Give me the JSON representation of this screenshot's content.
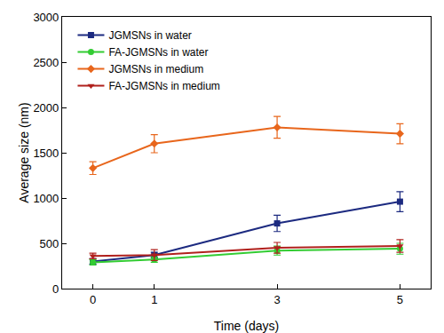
{
  "chart_data": {
    "type": "line",
    "x_label": "Time (days)",
    "y_label": "Average size (nm)",
    "x": [
      0,
      1,
      3,
      5
    ],
    "xlim": [
      -0.5,
      5.5
    ],
    "xticks": [
      0,
      1,
      3,
      5
    ],
    "ylim": [
      0,
      3000
    ],
    "yticks": [
      0,
      500,
      1000,
      1500,
      2000,
      2500,
      3000
    ],
    "grid": false,
    "legend": "upper left",
    "series": [
      {
        "name": "JGMSNs in water",
        "color": "#1c2a80",
        "marker": "square",
        "values": [
          300,
          370,
          720,
          960
        ],
        "errors": [
          30,
          30,
          90,
          110
        ]
      },
      {
        "name": "FA-JGMSNs in water",
        "color": "#33cc33",
        "marker": "circle",
        "values": [
          290,
          320,
          420,
          440
        ],
        "errors": [
          30,
          30,
          50,
          60
        ]
      },
      {
        "name": "JGMSNs in medium",
        "color": "#e8661c",
        "marker": "diamond",
        "values": [
          1330,
          1600,
          1780,
          1710
        ],
        "errors": [
          70,
          100,
          120,
          110
        ]
      },
      {
        "name": "FA-JGMSNs in medium",
        "color": "#b0201c",
        "marker": "triangle-down",
        "values": [
          360,
          370,
          450,
          470
        ],
        "errors": [
          30,
          60,
          60,
          70
        ]
      }
    ]
  }
}
